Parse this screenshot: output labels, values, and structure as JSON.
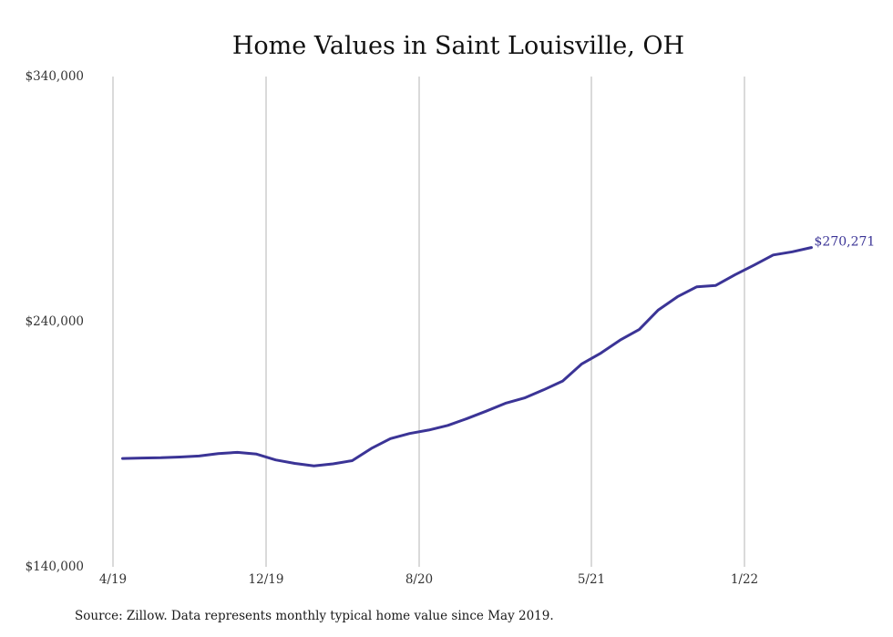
{
  "chart_data": {
    "type": "line",
    "title": "Home Values in Saint Louisville, OH",
    "xlabel": "",
    "ylabel": "",
    "x_ticks": [
      "4/19",
      "12/19",
      "8/20",
      "5/21",
      "1/22"
    ],
    "x_tick_months": [
      0,
      8,
      16,
      25,
      33
    ],
    "y_ticks": [
      "$140,000",
      "$240,000",
      "$340,000"
    ],
    "y_tick_values": [
      140000,
      240000,
      340000
    ],
    "ylim": [
      140000,
      340000
    ],
    "grid": "vertical",
    "series": [
      {
        "name": "",
        "color": "#3b3496",
        "x_months": [
          0.5,
          1.5,
          2.5,
          3.5,
          4.5,
          5.5,
          6.5,
          7.5,
          8.5,
          9.5,
          10.5,
          11.5,
          12.5,
          13.5,
          14.5,
          15.5,
          16.5,
          17.5,
          18.5,
          19.5,
          20.5,
          21.5,
          22.5,
          23.5,
          24.5,
          25.5,
          26.5,
          27.5,
          28.5,
          29.5,
          30.5,
          31.5,
          32.5,
          33.5,
          34.5,
          35.5,
          36.5
        ],
        "values": [
          184200,
          184400,
          184500,
          184800,
          185200,
          186200,
          186700,
          186000,
          183600,
          182200,
          181200,
          182000,
          183300,
          188300,
          192300,
          194400,
          195800,
          197700,
          200500,
          203500,
          206700,
          208900,
          212200,
          215800,
          222800,
          227200,
          232500,
          236800,
          244800,
          250200,
          254200,
          254800,
          259100,
          263100,
          267200,
          268500,
          270271
        ]
      }
    ],
    "end_label": "$270,271",
    "source_note": "Source: Zillow. Data represents monthly typical home value since May 2019."
  }
}
